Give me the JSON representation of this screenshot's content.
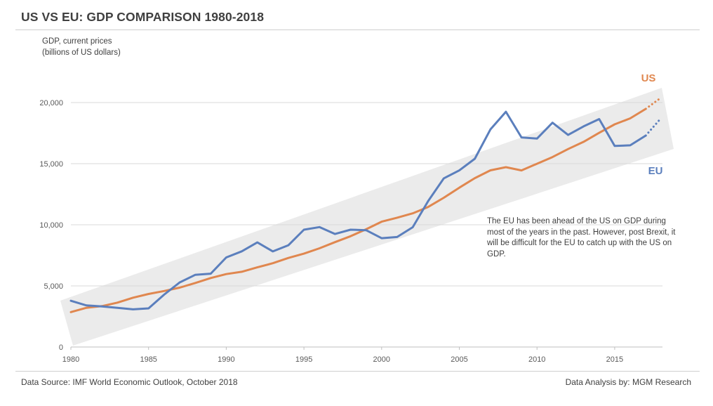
{
  "title": "US VS EU: GDP COMPARISON 1980-2018",
  "ylabel": {
    "line1": "GDP, current prices",
    "line2": "(billions of US dollars)"
  },
  "annotation": "The EU has been ahead of the US on GDP during most of the years in the past. However, post Brexit, it will be difficult for the EU to catch up with the US on GDP.",
  "footer": {
    "source": "Data Source: IMF World Economic Outlook, October 2018",
    "analysis": "Data Analysis by: MGM Research"
  },
  "colors": {
    "us": "#e0874f",
    "eu": "#5b7fbd",
    "band": "#ebebeb",
    "grid": "#d9d9d9",
    "axis": "#bfbfbf",
    "text": "#404040"
  },
  "chart_data": {
    "type": "line",
    "title": "US VS EU: GDP COMPARISON 1980-2018",
    "ylabel": "GDP, current prices (billions of US dollars)",
    "xlabel": "",
    "xlim": [
      1980,
      2018
    ],
    "ylim": [
      0,
      21000
    ],
    "x_ticks": [
      1980,
      1985,
      1990,
      1995,
      2000,
      2005,
      2010,
      2015
    ],
    "y_ticks": [
      0,
      5000,
      10000,
      15000,
      20000
    ],
    "y_tick_labels": [
      "0",
      "5,000",
      "10,000",
      "15,000",
      "20,000"
    ],
    "grid": "horizontal",
    "series": [
      {
        "name": "US",
        "label_position": "top-right",
        "x": [
          1980,
          1981,
          1982,
          1983,
          1984,
          1985,
          1986,
          1987,
          1988,
          1989,
          1990,
          1991,
          1992,
          1993,
          1994,
          1995,
          1996,
          1997,
          1998,
          1999,
          2000,
          2001,
          2002,
          2003,
          2004,
          2005,
          2006,
          2007,
          2008,
          2009,
          2010,
          2011,
          2012,
          2013,
          2014,
          2015,
          2016,
          2017
        ],
        "values": [
          2857,
          3207,
          3343,
          3634,
          4037,
          4339,
          4579,
          4855,
          5236,
          5641,
          5963,
          6158,
          6520,
          6859,
          7287,
          7640,
          8073,
          8578,
          9063,
          9631,
          10252,
          10582,
          10936,
          11458,
          12214,
          13037,
          13815,
          14452,
          14713,
          14449,
          14992,
          15543,
          16197,
          16785,
          17522,
          18219,
          18707,
          19485
        ],
        "projection_x": [
          2017,
          2018
        ],
        "projection_values": [
          19485,
          20413
        ]
      },
      {
        "name": "EU",
        "label_position": "right",
        "x": [
          1980,
          1981,
          1982,
          1983,
          1984,
          1985,
          1986,
          1987,
          1988,
          1989,
          1990,
          1991,
          1992,
          1993,
          1994,
          1995,
          1996,
          1997,
          1998,
          1999,
          2000,
          2001,
          2002,
          2003,
          2004,
          2005,
          2006,
          2007,
          2008,
          2009,
          2010,
          2011,
          2012,
          2013,
          2014,
          2015,
          2016,
          2017
        ],
        "values": [
          3780,
          3400,
          3320,
          3200,
          3080,
          3160,
          4280,
          5280,
          5900,
          6000,
          7330,
          7830,
          8560,
          7820,
          8330,
          9600,
          9810,
          9250,
          9600,
          9560,
          8900,
          9000,
          9800,
          11950,
          13800,
          14450,
          15400,
          17800,
          19250,
          17150,
          17050,
          18350,
          17350,
          18050,
          18650,
          16450,
          16500,
          17300
        ],
        "projection_x": [
          2017,
          2018
        ],
        "projection_values": [
          17300,
          18750
        ]
      }
    ]
  }
}
